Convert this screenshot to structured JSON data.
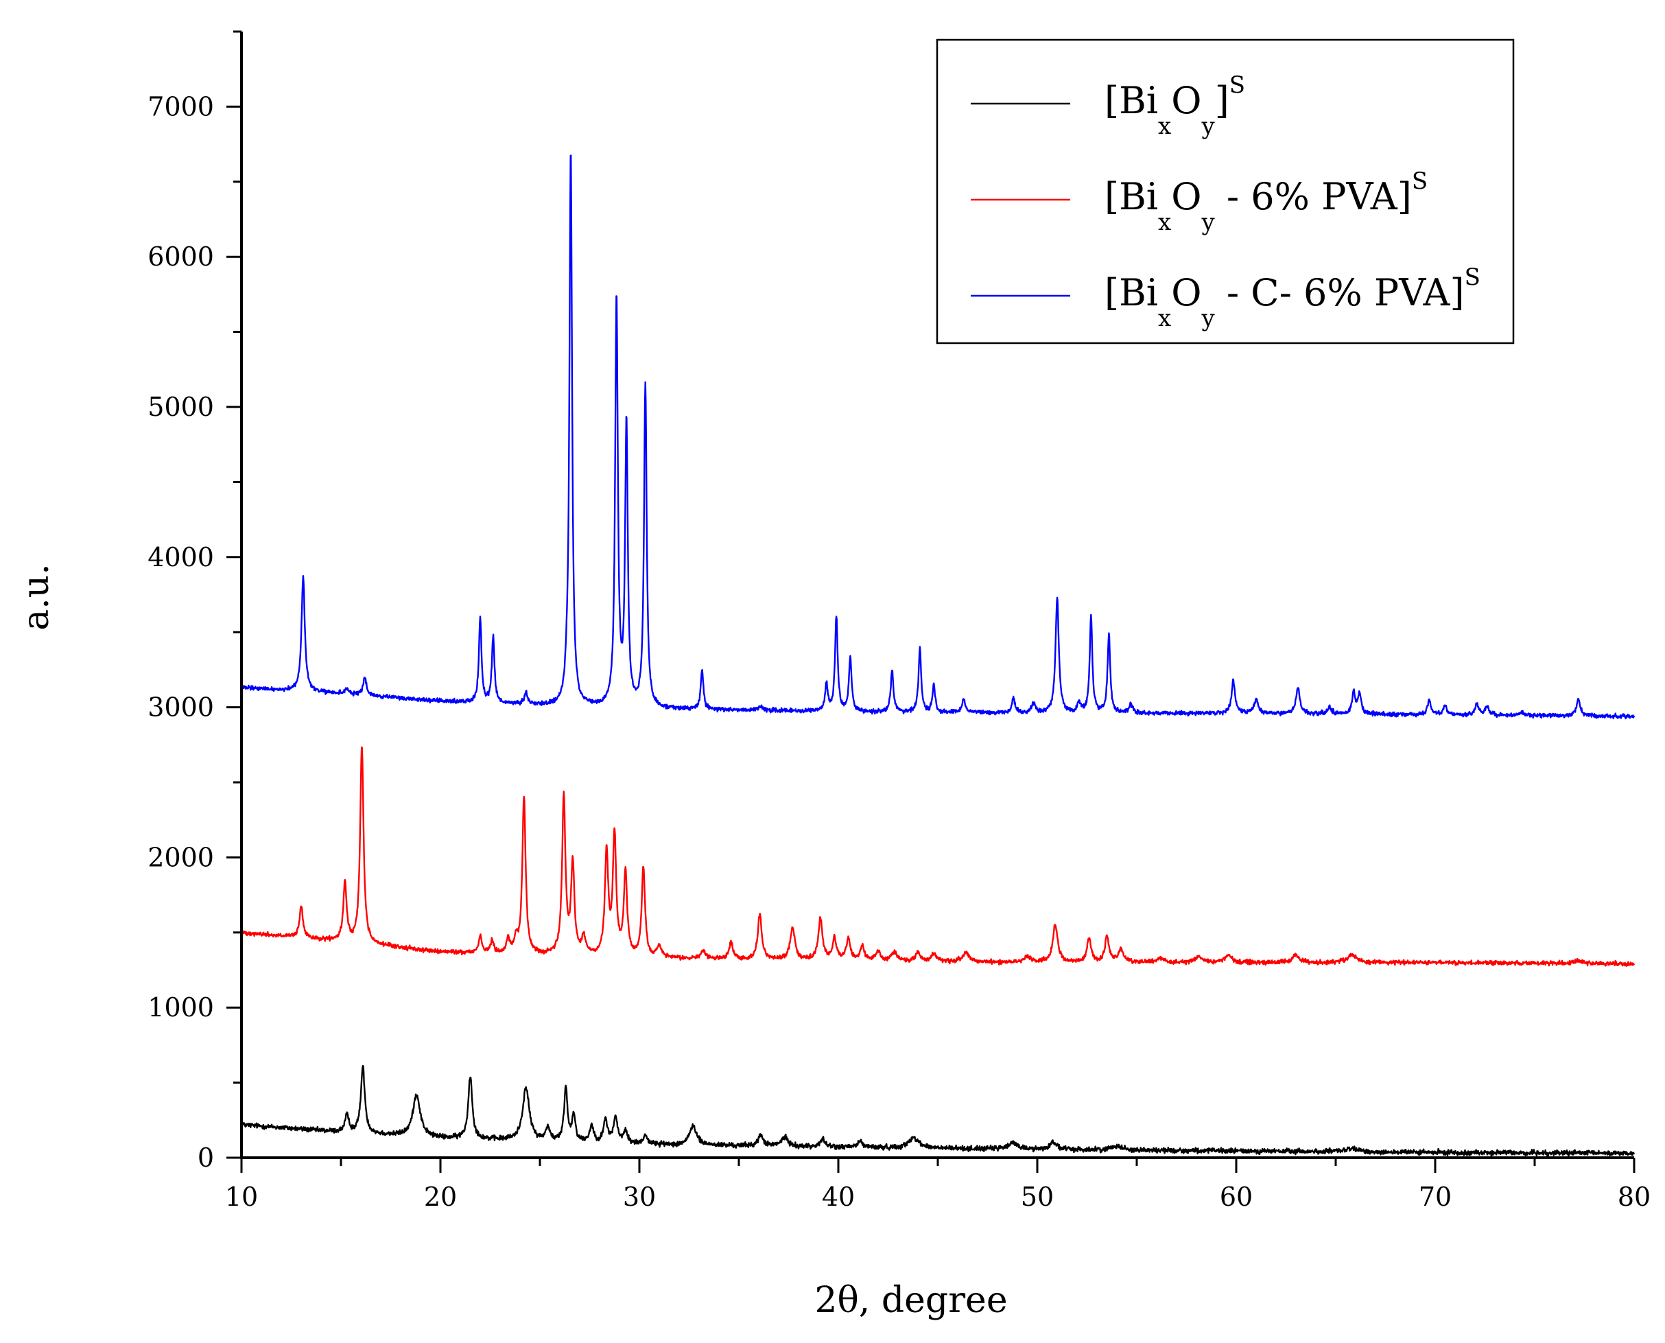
{
  "chart_data": {
    "type": "line",
    "xlabel": "2θ, degree",
    "ylabel": "a.u.",
    "xlim": [
      10,
      80
    ],
    "ylim": [
      0,
      7500
    ],
    "x_ticks": [
      10,
      20,
      30,
      40,
      50,
      60,
      70,
      80
    ],
    "y_ticks": [
      0,
      1000,
      2000,
      3000,
      4000,
      5000,
      6000,
      7000
    ],
    "grid": false,
    "legend_position": "top-right",
    "series": [
      {
        "name": "[BixOy]S",
        "legend": {
          "base": "[Bi",
          "sub1": "x",
          "mid": "O",
          "sub2": "y",
          "rest": "]",
          "sup": "S"
        },
        "color": "#000000",
        "baseline": [
          [
            10,
            220
          ],
          [
            15,
            170
          ],
          [
            20,
            130
          ],
          [
            30,
            90
          ],
          [
            40,
            70
          ],
          [
            50,
            55
          ],
          [
            60,
            45
          ],
          [
            70,
            35
          ],
          [
            80,
            30
          ]
        ],
        "noise": 12,
        "peaks": [
          [
            15.3,
            110,
            0.12
          ],
          [
            16.1,
            440,
            0.12
          ],
          [
            18.8,
            280,
            0.22
          ],
          [
            21.5,
            420,
            0.12
          ],
          [
            24.3,
            350,
            0.2
          ],
          [
            25.4,
            90,
            0.12
          ],
          [
            26.3,
            360,
            0.1
          ],
          [
            26.7,
            180,
            0.1
          ],
          [
            27.6,
            110,
            0.12
          ],
          [
            28.3,
            150,
            0.12
          ],
          [
            28.8,
            170,
            0.12
          ],
          [
            29.3,
            80,
            0.12
          ],
          [
            30.3,
            60,
            0.12
          ],
          [
            32.7,
            130,
            0.2
          ],
          [
            36.1,
            70,
            0.15
          ],
          [
            37.3,
            60,
            0.2
          ],
          [
            39.2,
            50,
            0.15
          ],
          [
            41.1,
            40,
            0.15
          ],
          [
            43.8,
            70,
            0.3
          ],
          [
            48.8,
            40,
            0.3
          ],
          [
            50.8,
            50,
            0.2
          ],
          [
            54,
            30,
            0.3
          ],
          [
            65.8,
            20,
            0.4
          ]
        ]
      },
      {
        "name": "[BixOy - 6% PVA]S",
        "legend": {
          "base": "[Bi",
          "sub1": "x",
          "mid": "O",
          "sub2": "y",
          "rest": " - 6% PVA]",
          "sup": "S"
        },
        "color": "#ff0000",
        "baseline": [
          [
            10,
            1500
          ],
          [
            15,
            1440
          ],
          [
            20,
            1370
          ],
          [
            30,
            1330
          ],
          [
            40,
            1310
          ],
          [
            50,
            1300
          ],
          [
            60,
            1300
          ],
          [
            70,
            1300
          ],
          [
            80,
            1290
          ]
        ],
        "noise": 10,
        "peaks": [
          [
            13,
            210,
            0.1
          ],
          [
            15.2,
            390,
            0.1
          ],
          [
            16.05,
            1320,
            0.1
          ],
          [
            22,
            110,
            0.1
          ],
          [
            22.6,
            80,
            0.1
          ],
          [
            23.4,
            100,
            0.1
          ],
          [
            23.8,
            90,
            0.1
          ],
          [
            24.2,
            1040,
            0.1
          ],
          [
            26.2,
            1050,
            0.1
          ],
          [
            26.65,
            600,
            0.1
          ],
          [
            27.2,
            120,
            0.12
          ],
          [
            28.35,
            690,
            0.1
          ],
          [
            28.75,
            800,
            0.1
          ],
          [
            29.3,
            560,
            0.1
          ],
          [
            30.2,
            600,
            0.1
          ],
          [
            31,
            80,
            0.12
          ],
          [
            33.2,
            50,
            0.15
          ],
          [
            34.6,
            110,
            0.12
          ],
          [
            36.05,
            300,
            0.12
          ],
          [
            37.7,
            210,
            0.15
          ],
          [
            39.1,
            280,
            0.12
          ],
          [
            39.8,
            150,
            0.12
          ],
          [
            40.5,
            150,
            0.12
          ],
          [
            41.2,
            100,
            0.12
          ],
          [
            42,
            60,
            0.15
          ],
          [
            42.8,
            60,
            0.15
          ],
          [
            44,
            60,
            0.15
          ],
          [
            44.8,
            50,
            0.15
          ],
          [
            46.4,
            60,
            0.2
          ],
          [
            49.5,
            40,
            0.2
          ],
          [
            50.9,
            250,
            0.15
          ],
          [
            52.6,
            160,
            0.12
          ],
          [
            53.5,
            170,
            0.12
          ],
          [
            54.2,
            90,
            0.15
          ],
          [
            56.2,
            30,
            0.2
          ],
          [
            58.1,
            40,
            0.2
          ],
          [
            59.6,
            50,
            0.2
          ],
          [
            63,
            50,
            0.2
          ],
          [
            65.8,
            50,
            0.3
          ],
          [
            77.2,
            20,
            0.2
          ]
        ]
      },
      {
        "name": "[BixOy - C- 6% PVA]S",
        "legend": {
          "base": "[Bi",
          "sub1": "x",
          "mid": "O",
          "sub2": "y",
          "rest": " - C- 6% PVA]",
          "sup": "S"
        },
        "color": "#0000ff",
        "baseline": [
          [
            10,
            3130
          ],
          [
            15,
            3090
          ],
          [
            20,
            3040
          ],
          [
            25,
            3010
          ],
          [
            30,
            2990
          ],
          [
            40,
            2970
          ],
          [
            50,
            2960
          ],
          [
            60,
            2960
          ],
          [
            70,
            2950
          ],
          [
            80,
            2940
          ]
        ],
        "noise": 10,
        "peaks": [
          [
            13.1,
            760,
            0.1
          ],
          [
            15.3,
            40,
            0.1
          ],
          [
            16.2,
            120,
            0.1
          ],
          [
            22,
            560,
            0.08
          ],
          [
            22.65,
            440,
            0.08
          ],
          [
            24.3,
            80,
            0.1
          ],
          [
            26.35,
            100,
            0.08
          ],
          [
            26.55,
            3700,
            0.08
          ],
          [
            28.85,
            2720,
            0.08
          ],
          [
            29.35,
            1880,
            0.08
          ],
          [
            30.3,
            2160,
            0.08
          ],
          [
            33.15,
            260,
            0.08
          ],
          [
            36.1,
            30,
            0.15
          ],
          [
            39.4,
            180,
            0.08
          ],
          [
            39.9,
            630,
            0.08
          ],
          [
            40.6,
            360,
            0.08
          ],
          [
            42.7,
            280,
            0.08
          ],
          [
            44.1,
            420,
            0.08
          ],
          [
            44.8,
            180,
            0.08
          ],
          [
            46.3,
            90,
            0.1
          ],
          [
            48.8,
            90,
            0.1
          ],
          [
            49.8,
            70,
            0.1
          ],
          [
            51,
            760,
            0.1
          ],
          [
            52.1,
            70,
            0.1
          ],
          [
            52.7,
            640,
            0.08
          ],
          [
            53.6,
            520,
            0.08
          ],
          [
            54.7,
            60,
            0.1
          ],
          [
            59.85,
            220,
            0.1
          ],
          [
            61,
            90,
            0.12
          ],
          [
            63.1,
            170,
            0.12
          ],
          [
            64.7,
            40,
            0.12
          ],
          [
            65.9,
            140,
            0.1
          ],
          [
            66.2,
            130,
            0.1
          ],
          [
            69.7,
            100,
            0.1
          ],
          [
            70.5,
            60,
            0.1
          ],
          [
            72.1,
            80,
            0.1
          ],
          [
            72.6,
            60,
            0.1
          ],
          [
            74.3,
            20,
            0.15
          ],
          [
            77.2,
            110,
            0.12
          ]
        ]
      }
    ]
  }
}
